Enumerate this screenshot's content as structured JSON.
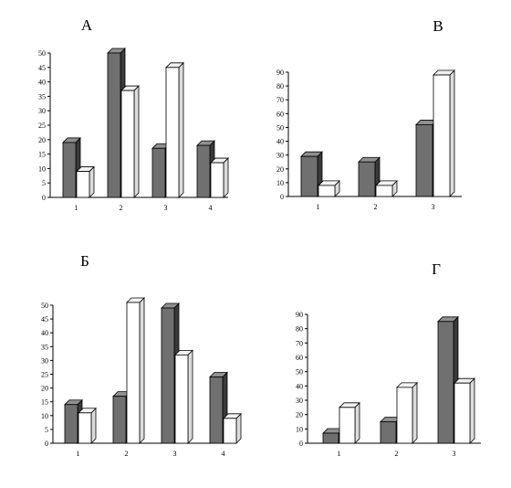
{
  "chart_data": [
    {
      "type": "bar",
      "label": "А",
      "categories": [
        "1",
        "2",
        "3",
        "4"
      ],
      "series": [
        {
          "values": [
            19,
            50,
            17,
            18
          ],
          "color": "#707070"
        },
        {
          "values": [
            9,
            37,
            45,
            12
          ],
          "color": "#ffffff"
        }
      ],
      "ylim": [
        0,
        50
      ],
      "yticks": [
        0,
        5,
        10,
        15,
        20,
        25,
        30,
        35,
        40,
        45,
        50
      ],
      "grid": false
    },
    {
      "type": "bar",
      "label": "В",
      "categories": [
        "1",
        "2",
        "3"
      ],
      "series": [
        {
          "values": [
            29,
            25,
            52
          ],
          "color": "#707070"
        },
        {
          "values": [
            8,
            8,
            88
          ],
          "color": "#ffffff"
        }
      ],
      "ylim": [
        0,
        90
      ],
      "yticks": [
        0,
        10,
        20,
        30,
        40,
        50,
        60,
        70,
        80,
        90
      ],
      "grid": false
    },
    {
      "type": "bar",
      "label": "Б",
      "categories": [
        "1",
        "2",
        "3",
        "4"
      ],
      "series": [
        {
          "values": [
            14,
            17,
            49,
            24
          ],
          "color": "#707070"
        },
        {
          "values": [
            11,
            51,
            32,
            9
          ],
          "color": "#ffffff"
        }
      ],
      "ylim": [
        0,
        50
      ],
      "yticks": [
        0,
        5,
        10,
        15,
        20,
        25,
        30,
        35,
        40,
        45,
        50
      ],
      "grid": false
    },
    {
      "type": "bar",
      "label": "Г",
      "categories": [
        "1",
        "2",
        "3"
      ],
      "series": [
        {
          "values": [
            7,
            15,
            85
          ],
          "color": "#707070"
        },
        {
          "values": [
            25,
            39,
            42
          ],
          "color": "#ffffff"
        }
      ],
      "ylim": [
        0,
        90
      ],
      "yticks": [
        0,
        10,
        20,
        30,
        40,
        50,
        60,
        70,
        80,
        90
      ],
      "grid": false
    }
  ]
}
